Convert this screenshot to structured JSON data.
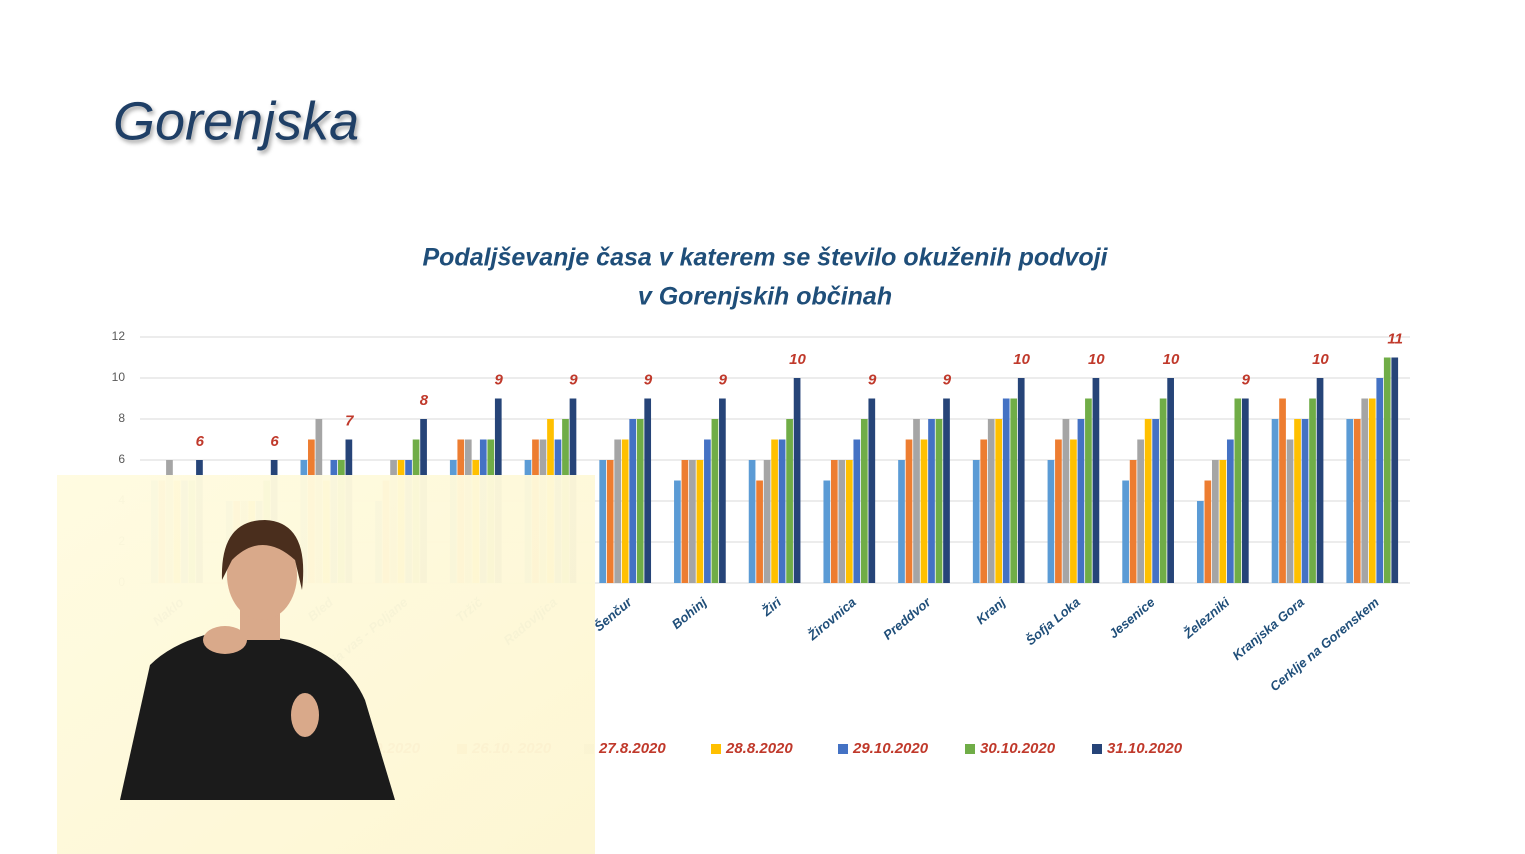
{
  "slide_title": "Gorenjska",
  "chart_data": {
    "type": "bar",
    "title": [
      "Podaljševanje časa v katerem se število okuženih podvoji",
      "v Gorenjskih občinah"
    ],
    "categories": [
      "Naklo",
      null,
      "Bled",
      "Gorenja vas - Poljane",
      "Tržič",
      "Radovljica",
      "Šenčur",
      "Bohinj",
      "Žiri",
      "Žirovnica",
      "Preddvor",
      "Kranj",
      "Šofja Loka",
      "Jesenice",
      "Železniki",
      "Kranjska Gora",
      "Cerklje na Gorenskem"
    ],
    "series": [
      {
        "name": "25.10.2020",
        "color": "#5b9bd5",
        "values": [
          5,
          4,
          6,
          4,
          6,
          6,
          6,
          5,
          6,
          5,
          6,
          6,
          6,
          5,
          4,
          8,
          8
        ]
      },
      {
        "name": "26.10. 2020",
        "color": "#ed7d31",
        "values": [
          5,
          4,
          7,
          5,
          7,
          7,
          6,
          6,
          5,
          6,
          7,
          7,
          7,
          6,
          5,
          9,
          8
        ]
      },
      {
        "name": "27.8.2020",
        "color": "#a5a5a5",
        "values": [
          6,
          4,
          8,
          6,
          7,
          7,
          7,
          6,
          6,
          6,
          8,
          8,
          8,
          7,
          6,
          7,
          9
        ]
      },
      {
        "name": "28.8.2020",
        "color": "#ffc000",
        "values": [
          5,
          4,
          5,
          6,
          6,
          8,
          7,
          6,
          7,
          6,
          7,
          8,
          7,
          8,
          6,
          8,
          9
        ]
      },
      {
        "name": "29.10.2020",
        "color": "#4472c4",
        "values": [
          5,
          4,
          6,
          6,
          7,
          7,
          8,
          7,
          7,
          7,
          8,
          9,
          8,
          8,
          7,
          8,
          10
        ]
      },
      {
        "name": "30.10.2020",
        "color": "#70ad47",
        "values": [
          5,
          5,
          6,
          7,
          7,
          8,
          8,
          8,
          8,
          8,
          8,
          9,
          9,
          9,
          9,
          9,
          11
        ]
      },
      {
        "name": "31.10.2020",
        "color": "#264478",
        "values": [
          6,
          6,
          7,
          8,
          9,
          9,
          9,
          9,
          10,
          9,
          9,
          10,
          10,
          10,
          9,
          10,
          11
        ],
        "data_labels": true
      }
    ],
    "ylim": [
      0,
      12
    ],
    "yticks": [
      0,
      2,
      4,
      6,
      8,
      10,
      12
    ],
    "grid": true,
    "legend": "bottom"
  }
}
